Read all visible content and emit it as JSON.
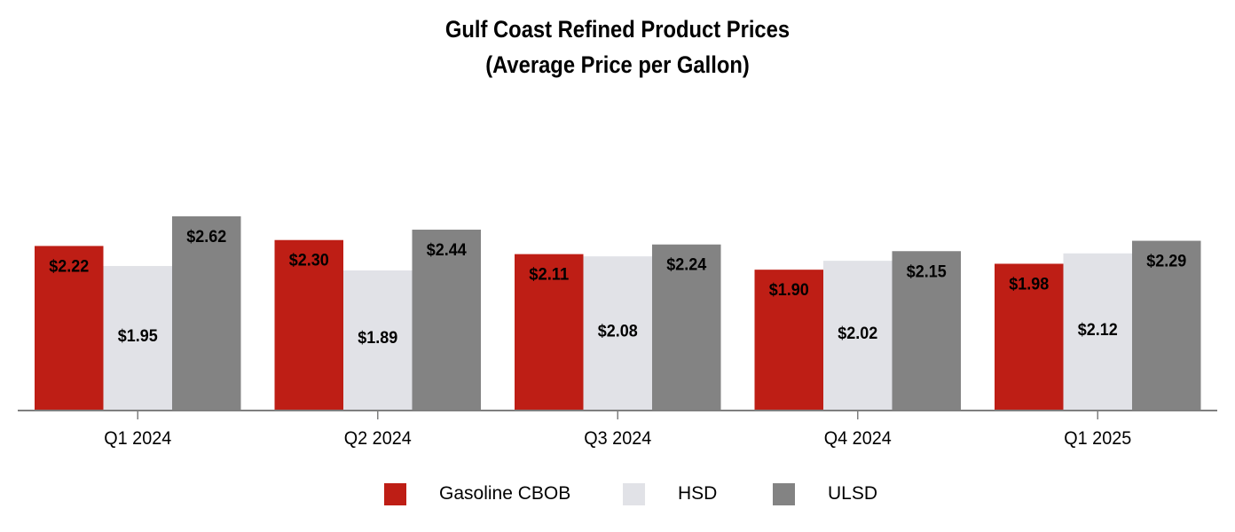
{
  "chart_data": {
    "type": "bar",
    "title": "Gulf Coast Refined Product Prices",
    "subtitle": "(Average Price per Gallon)",
    "categories": [
      "Q1 2024",
      "Q2 2024",
      "Q3 2024",
      "Q4 2024",
      "Q1 2025"
    ],
    "series": [
      {
        "name": "Gasoline CBOB",
        "color": "#BE1E15",
        "values": [
          2.22,
          2.3,
          2.11,
          1.9,
          1.98
        ],
        "labels": [
          "$2.22",
          "$2.30",
          "$2.11",
          "$1.90",
          "$1.98"
        ]
      },
      {
        "name": "HSD",
        "color": "#E1E2E7",
        "values": [
          1.95,
          1.89,
          2.08,
          2.02,
          2.12
        ],
        "labels": [
          "$1.95",
          "$1.89",
          "$2.08",
          "$2.02",
          "$2.12"
        ]
      },
      {
        "name": "ULSD",
        "color": "#838383",
        "values": [
          2.62,
          2.44,
          2.24,
          2.15,
          2.29
        ],
        "labels": [
          "$2.62",
          "$2.44",
          "$2.24",
          "$2.15",
          "$2.29"
        ]
      }
    ],
    "xlabel": "",
    "ylabel": "",
    "ylim": [
      0,
      3.2
    ],
    "grid": false,
    "legend_position": "bottom"
  }
}
